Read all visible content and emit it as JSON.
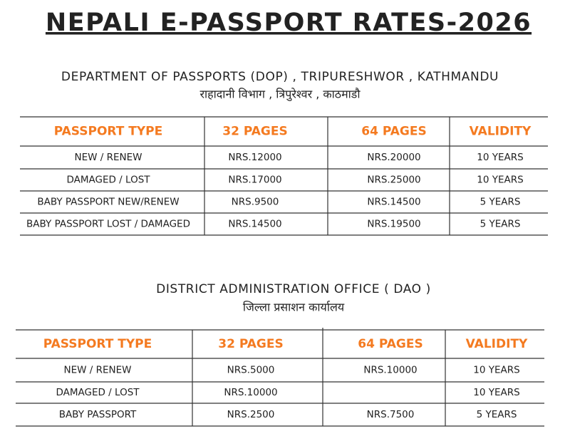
{
  "title": "NEPALI E-PASSPORT RATES-2026",
  "sections": [
    {
      "heading": "DEPARTMENT OF PASSPORTS (DOP) , TRIPURESHWOR , KATHMANDU",
      "subheading": "राहादानी विभाग , त्रिपुरेश्वर , काठमाडौ",
      "table": {
        "header": [
          "PASSPORT TYPE",
          "32 PAGES",
          "64  PAGES",
          "VALIDITY"
        ],
        "rows": [
          [
            "NEW / RENEW",
            "NRS.12000",
            "NRS.20000",
            "10 YEARS"
          ],
          [
            "DAMAGED / LOST",
            "NRS.17000",
            "NRS.25000",
            "10 YEARS"
          ],
          [
            "BABY PASSPORT NEW/RENEW",
            "NRS.9500",
            "NRS.14500",
            "5  YEARS"
          ],
          [
            "BABY PASSPORT LOST / DAMAGED",
            "NRS.14500",
            "NRS.19500",
            "5  YEARS"
          ]
        ]
      }
    },
    {
      "heading": "DISTRICT ADMINISTRATION OFFICE ( DAO )",
      "subheading": "जिल्ला प्रसाशन कार्यालय",
      "table": {
        "header": [
          "PASSPORT TYPE",
          "32 PAGES",
          "64  PAGES",
          "VALIDITY"
        ],
        "rows": [
          [
            "NEW / RENEW",
            "NRS.5000",
            "NRS.10000",
            "10 YEARS"
          ],
          [
            "DAMAGED / LOST",
            "NRS.10000",
            null,
            "10 YEARS"
          ],
          [
            "BABY PASSPORT",
            "NRS.2500",
            "NRS.7500",
            "5 YEARS"
          ]
        ]
      }
    }
  ]
}
